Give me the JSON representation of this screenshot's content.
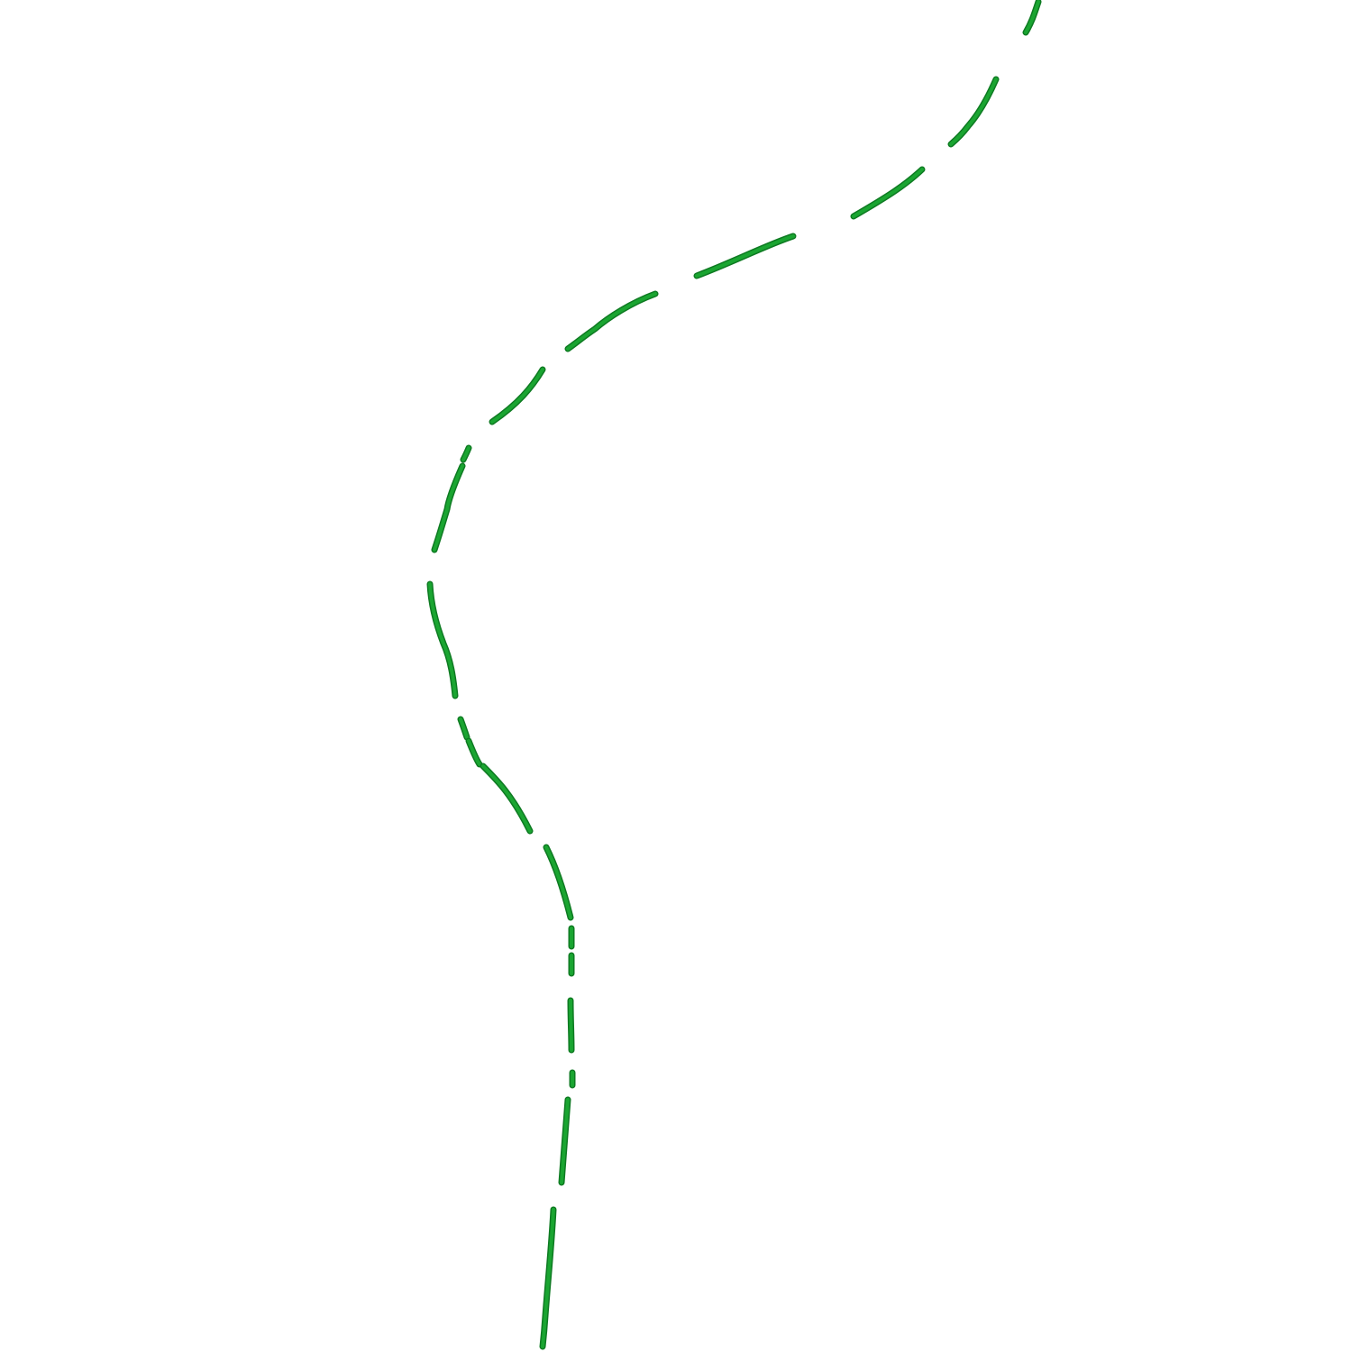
{
  "drawing": {
    "background_color": "#ffffff",
    "line_color": "#1aa531",
    "line_shadow_color": "#0e7a22",
    "line_style": "dashed",
    "visible_text": []
  }
}
